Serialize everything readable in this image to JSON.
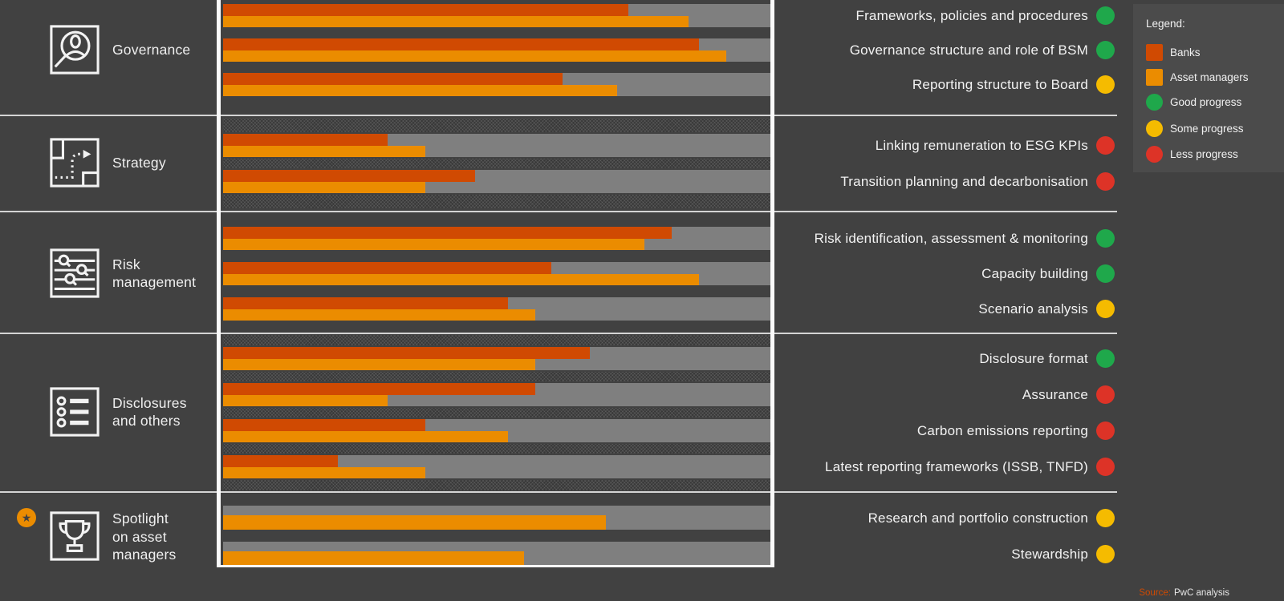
{
  "page": {
    "background": "#414141"
  },
  "legend": {
    "title": "Legend:",
    "items": [
      {
        "label": "Banks",
        "shape": "square",
        "color": "#d04a02"
      },
      {
        "label": "Asset managers",
        "shape": "square",
        "color": "#eb8c00"
      },
      {
        "label": "Good progress",
        "shape": "circle",
        "color": "#1fa84b"
      },
      {
        "label": "Some progress",
        "shape": "circle",
        "color": "#f5bb00"
      },
      {
        "label": "Less progress",
        "shape": "circle",
        "color": "#dd3327"
      }
    ]
  },
  "source": {
    "prefix": "Source:",
    "text": "PwC analysis"
  },
  "chart_data": {
    "type": "bar",
    "orientation": "horizontal",
    "series_names": [
      "Banks",
      "Asset managers"
    ],
    "value_note": "bar lengths estimated as percent of full scale; axis unlabeled",
    "xlim": [
      0,
      100
    ],
    "colors": {
      "banks": "#d04a02",
      "asset_managers": "#eb8c00",
      "good": "#1fa84b",
      "some": "#f5bb00",
      "less": "#dd3327",
      "track": "#7f7f7f"
    },
    "status_legend": {
      "good": "Good progress",
      "some": "Some progress",
      "less": "Less progress"
    },
    "sections": [
      {
        "id": "governance",
        "label": "Governance",
        "label_lines": [
          "Governance"
        ],
        "icon": "magnifier-person",
        "rows": [
          {
            "label": "Frameworks, policies and procedures",
            "status": "good",
            "banks": 74,
            "asset_managers": 85
          },
          {
            "label": "Governance structure and role of BSM",
            "status": "good",
            "banks": 87,
            "asset_managers": 92
          },
          {
            "label": "Reporting structure to Board",
            "status": "some",
            "banks": 62,
            "asset_managers": 72
          }
        ]
      },
      {
        "id": "strategy",
        "label": "Strategy",
        "label_lines": [
          "Strategy"
        ],
        "icon": "route",
        "rows": [
          {
            "label": "Linking remuneration to ESG KPIs",
            "status": "less",
            "banks": 30,
            "asset_managers": 37
          },
          {
            "label": "Transition planning and decarbonisation",
            "status": "less",
            "banks": 46,
            "asset_managers": 37
          }
        ]
      },
      {
        "id": "risk-management",
        "label": "Risk management",
        "label_lines": [
          "Risk",
          "management"
        ],
        "icon": "lines-magnifiers",
        "rows": [
          {
            "label": "Risk identification, assessment & monitoring",
            "status": "good",
            "banks": 82,
            "asset_managers": 77
          },
          {
            "label": "Capacity building",
            "status": "good",
            "banks": 60,
            "asset_managers": 87
          },
          {
            "label": "Scenario analysis",
            "status": "some",
            "banks": 52,
            "asset_managers": 57
          }
        ]
      },
      {
        "id": "disclosures",
        "label": "Disclosures and others",
        "label_lines": [
          "Disclosures",
          "and others"
        ],
        "icon": "bullet-list",
        "rows": [
          {
            "label": "Disclosure format",
            "status": "good",
            "banks": 67,
            "asset_managers": 57
          },
          {
            "label": "Assurance",
            "status": "less",
            "banks": 57,
            "asset_managers": 30
          },
          {
            "label": "Carbon emissions reporting",
            "status": "less",
            "banks": 37,
            "asset_managers": 52
          },
          {
            "label": "Latest reporting frameworks (ISSB, TNFD)",
            "status": "less",
            "banks": 21,
            "asset_managers": 37
          }
        ]
      },
      {
        "id": "spotlight-asset-managers",
        "label": "Spotlight on asset managers",
        "label_lines": [
          "Spotlight",
          "on asset",
          "managers"
        ],
        "icon": "trophy",
        "badge": "star",
        "rows": [
          {
            "label": "Research and portfolio construction",
            "status": "some",
            "banks": null,
            "asset_managers": 70
          },
          {
            "label": "Stewardship",
            "status": "some",
            "banks": null,
            "asset_managers": 55
          }
        ]
      }
    ]
  }
}
